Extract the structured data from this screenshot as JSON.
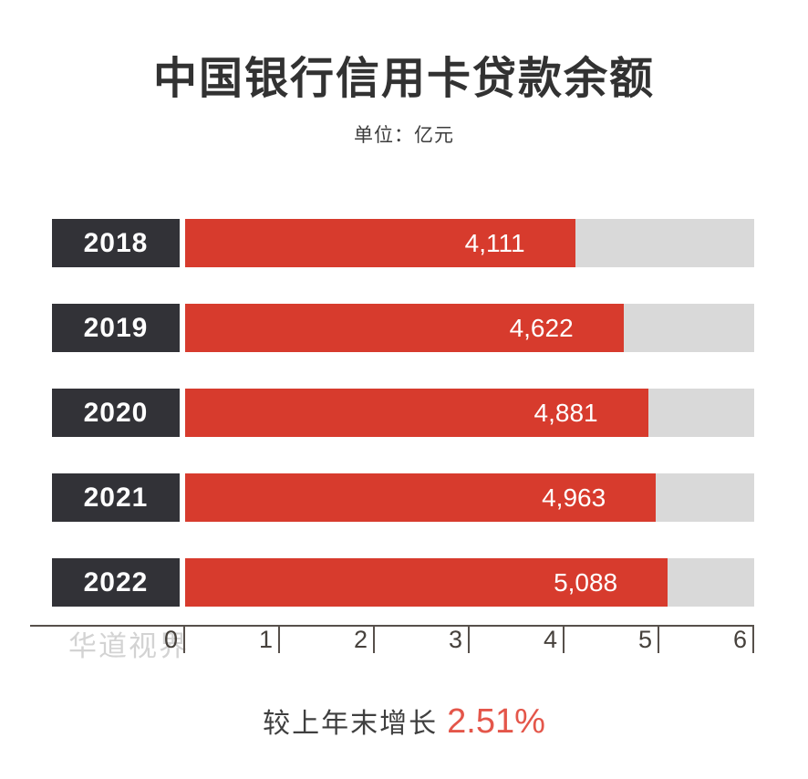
{
  "chart_data": {
    "type": "bar",
    "orientation": "horizontal",
    "title": "中国银行信用卡贷款余额",
    "unit_label": "单位：亿元",
    "categories": [
      "2018",
      "2019",
      "2020",
      "2021",
      "2022"
    ],
    "values": [
      4111,
      4622,
      4881,
      4963,
      5088
    ],
    "display_values": [
      "4,111",
      "4,622",
      "4,881",
      "4,963",
      "5,088"
    ],
    "xlim": [
      0,
      6000
    ],
    "axis_max": 6000,
    "x_ticks": [
      "0",
      "1",
      "2",
      "3",
      "4",
      "5",
      "6"
    ],
    "grid": "off",
    "legend": "none"
  },
  "footer": {
    "prefix": "较上年末增长",
    "growth": "2.51%"
  },
  "watermark": "华道视界",
  "colors": {
    "bar_red": "#d73b2d",
    "track_gray": "#d9d9d9",
    "label_box_dark": "#323237",
    "title_dark": "#323232",
    "axis_dark": "#57504b",
    "tick_text": "#46413c",
    "growth_red": "#e4564a",
    "watermark_gray": "#d3d3d3"
  }
}
